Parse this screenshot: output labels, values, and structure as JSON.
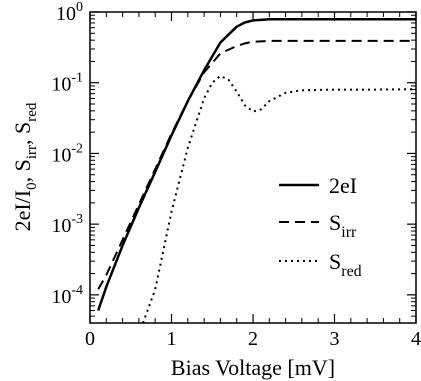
{
  "chart_data": {
    "type": "line",
    "xlabel": "Bias Voltage [mV]",
    "ylabel_parts": [
      {
        "text": "2eI/I",
        "sub": false
      },
      {
        "text": "0",
        "sub": true
      },
      {
        "text": ", S",
        "sub": false
      },
      {
        "text": "irr",
        "sub": true
      },
      {
        "text": ", S",
        "sub": false
      },
      {
        "text": "red",
        "sub": true
      }
    ],
    "xlim": [
      0,
      4
    ],
    "ylim": [
      4e-05,
      1
    ],
    "y_scale": "log",
    "x_ticks": [
      0,
      1,
      2,
      3,
      4
    ],
    "x_tick_labels": [
      "0",
      "1",
      "2",
      "3",
      "4"
    ],
    "y_ticks": [
      {
        "value": 0.0001,
        "base": "10",
        "exp": "-4"
      },
      {
        "value": 0.001,
        "base": "10",
        "exp": "-3"
      },
      {
        "value": 0.01,
        "base": "10",
        "exp": "-2"
      },
      {
        "value": 0.1,
        "base": "10",
        "exp": "-1"
      },
      {
        "value": 1,
        "base": "10",
        "exp": "0"
      }
    ],
    "legend_position": "right-middle",
    "series": [
      {
        "name": "2eI",
        "name_main": "2eI",
        "name_sub": "",
        "style": "solid",
        "x": [
          0.1,
          0.2,
          0.4,
          0.6,
          0.8,
          1.0,
          1.2,
          1.4,
          1.6,
          1.8,
          1.9,
          2.0,
          2.2,
          2.4,
          3.0,
          4.0
        ],
        "y": [
          6e-05,
          0.00013,
          0.0005,
          0.0017,
          0.0055,
          0.018,
          0.055,
          0.15,
          0.37,
          0.62,
          0.71,
          0.76,
          0.79,
          0.79,
          0.79,
          0.79
        ]
      },
      {
        "name": "S_irr",
        "name_main": "S",
        "name_sub": "irr",
        "style": "dashed",
        "x": [
          0.1,
          0.2,
          0.4,
          0.6,
          0.8,
          1.0,
          1.2,
          1.4,
          1.6,
          1.8,
          1.9,
          2.0,
          2.2,
          2.4,
          3.0,
          4.0
        ],
        "y": [
          0.00012,
          0.00019,
          0.0006,
          0.0019,
          0.006,
          0.019,
          0.055,
          0.14,
          0.26,
          0.33,
          0.36,
          0.38,
          0.39,
          0.39,
          0.39,
          0.39
        ]
      },
      {
        "name": "S_red",
        "name_main": "S",
        "name_sub": "red",
        "style": "dotted",
        "x": [
          0.65,
          0.8,
          1.0,
          1.2,
          1.4,
          1.5,
          1.6,
          1.7,
          1.8,
          1.9,
          2.0,
          2.1,
          2.2,
          2.4,
          2.6,
          3.0,
          3.5,
          4.0
        ],
        "y": [
          4e-05,
          0.00012,
          0.0015,
          0.012,
          0.06,
          0.1,
          0.125,
          0.11,
          0.075,
          0.048,
          0.039,
          0.042,
          0.055,
          0.072,
          0.078,
          0.08,
          0.08,
          0.081
        ]
      }
    ]
  }
}
